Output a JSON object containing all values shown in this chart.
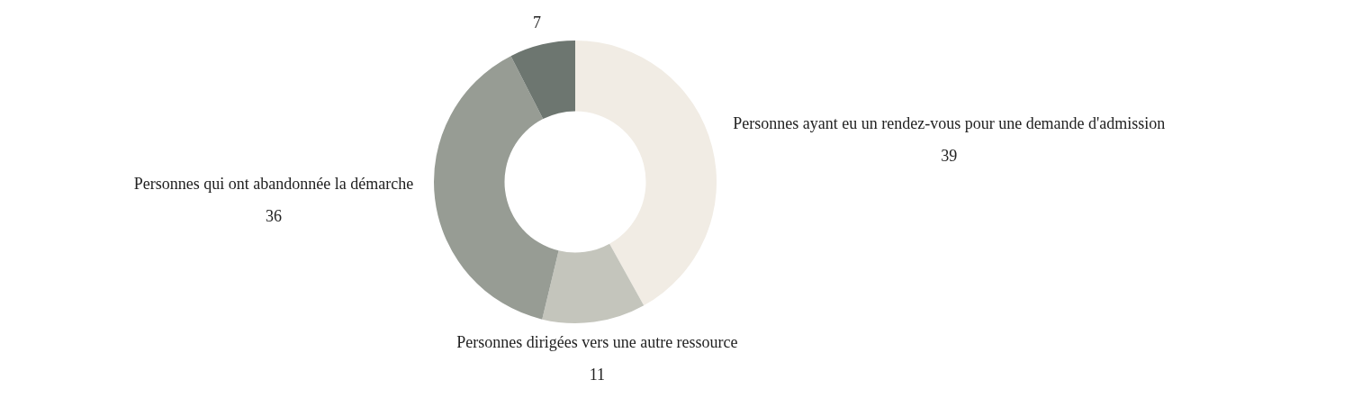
{
  "chart_data": {
    "type": "donut",
    "categories": [
      "Personnes ayant eu un rendez-vous pour une demande d'admission",
      "Personnes dirigées vers une autre ressource",
      "Personnes qui ont abandonnée la démarche",
      null
    ],
    "values": [
      39,
      11,
      36,
      7
    ],
    "colors": [
      "#f1ece4",
      "#c4c5bc",
      "#979c94",
      "#6d7670"
    ],
    "data_labels": true,
    "legend": false
  }
}
